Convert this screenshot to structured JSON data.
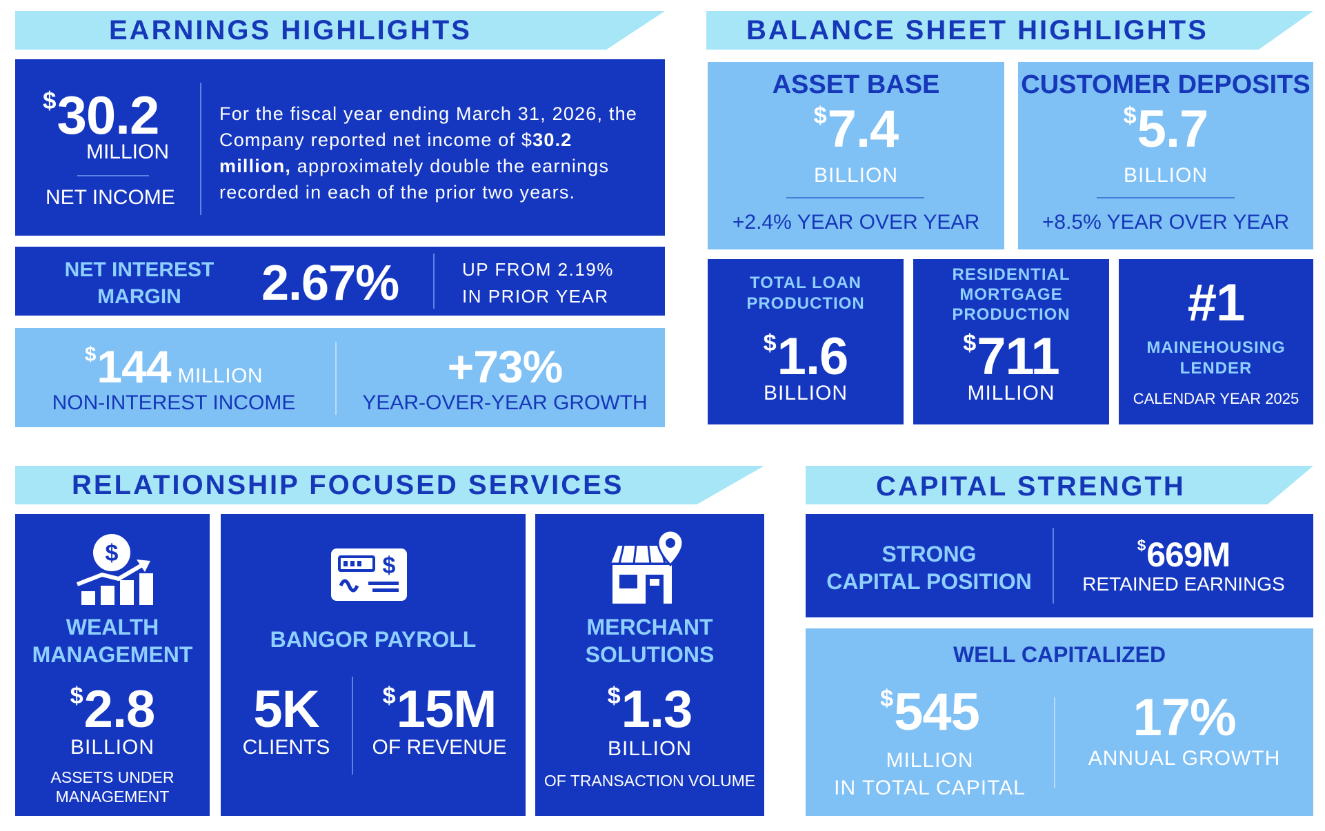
{
  "earnings": {
    "title": "EARNINGS HIGHLIGHTS",
    "net_income_symbol": "$",
    "net_income_value": "30.2",
    "net_income_unit": "MILLION",
    "net_income_label": "NET INCOME",
    "desc_pre": "For the fiscal year ending March 31, 2026, the Company reported net income of $",
    "desc_bold": "30.2 million,",
    "desc_post": " approximately double the earnings recorded in each of the prior two years.",
    "nim_label_1": "NET INTEREST",
    "nim_label_2": "MARGIN",
    "nim_value": "2.67%",
    "nim_note_1": "UP FROM 2.19%",
    "nim_note_2": "IN PRIOR YEAR",
    "nii_symbol": "$",
    "nii_value": "144",
    "nii_unit": "MILLION",
    "nii_label": "NON-INTEREST INCOME",
    "growth_value": "+73%",
    "growth_label": "YEAR-OVER-YEAR GROWTH"
  },
  "balance": {
    "title": "BALANCE SHEET HIGHLIGHTS",
    "asset_title": "ASSET BASE",
    "asset_symbol": "$",
    "asset_value": "7.4",
    "asset_unit": "BILLION",
    "asset_change": "+2.4% YEAR OVER YEAR",
    "deposit_title": "CUSTOMER DEPOSITS",
    "deposit_symbol": "$",
    "deposit_value": "5.7",
    "deposit_unit": "BILLION",
    "deposit_change": "+8.5% YEAR OVER YEAR",
    "loan_title_1": "TOTAL LOAN",
    "loan_title_2": "PRODUCTION",
    "loan_symbol": "$",
    "loan_value": "1.6",
    "loan_unit": "BILLION",
    "mortgage_title_1": "RESIDENTIAL",
    "mortgage_title_2": "MORTGAGE",
    "mortgage_title_3": "PRODUCTION",
    "mortgage_symbol": "$",
    "mortgage_value": "711",
    "mortgage_unit": "MILLION",
    "rank_value": "#1",
    "rank_label_1": "MAINEHOUSING",
    "rank_label_2": "LENDER",
    "rank_note": "CALENDAR YEAR 2025"
  },
  "services": {
    "title": "RELATIONSHIP FOCUSED SERVICES",
    "wealth_title_1": "WEALTH",
    "wealth_title_2": "MANAGEMENT",
    "wealth_symbol": "$",
    "wealth_value": "2.8",
    "wealth_unit": "BILLION",
    "wealth_note_1": "ASSETS UNDER",
    "wealth_note_2": "MANAGEMENT",
    "payroll_title": "BANGOR PAYROLL",
    "payroll_clients_value": "5K",
    "payroll_clients_label": "CLIENTS",
    "payroll_rev_symbol": "$",
    "payroll_rev_value": "15M",
    "payroll_rev_label": "OF REVENUE",
    "merchant_title_1": "MERCHANT",
    "merchant_title_2": "SOLUTIONS",
    "merchant_symbol": "$",
    "merchant_value": "1.3",
    "merchant_unit": "BILLION",
    "merchant_note": "OF TRANSACTION VOLUME"
  },
  "capital": {
    "title": "CAPITAL STRENGTH",
    "position_1": "STRONG",
    "position_2": "CAPITAL POSITION",
    "retained_symbol": "$",
    "retained_value": "669M",
    "retained_label": "RETAINED EARNINGS",
    "well_title": "WELL CAPITALIZED",
    "total_symbol": "$",
    "total_value": "545",
    "total_unit": "MILLION",
    "total_label": "IN TOTAL CAPITAL",
    "growth_value": "17%",
    "growth_label": "ANNUAL GROWTH"
  },
  "icons": [
    "dollar-growth-icon",
    "payroll-check-icon",
    "storefront-location-icon"
  ],
  "colors": {
    "dark_blue": "#1537c0",
    "light_blue": "#7fc0f5",
    "banner": "#a6e6f7",
    "heading_blue": "#1537b8"
  }
}
